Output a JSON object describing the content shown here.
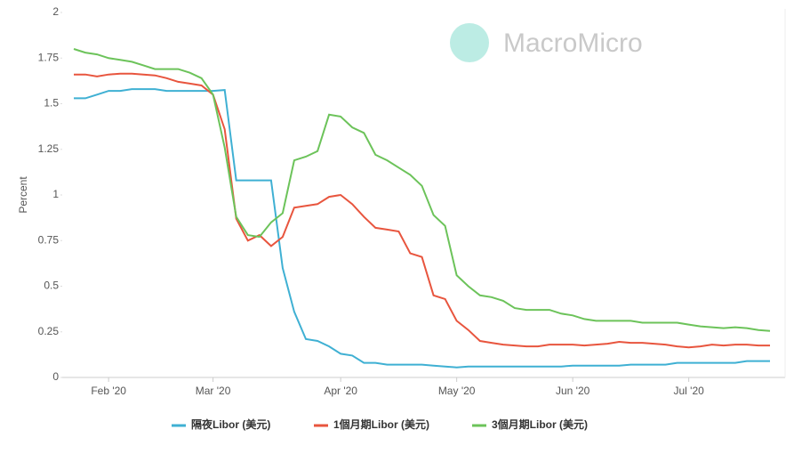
{
  "chart_data": {
    "type": "line",
    "watermark": "MacroMicro",
    "y_label": "Percent",
    "categories": [
      null,
      null,
      null,
      "Feb '20",
      null,
      null,
      null,
      null,
      null,
      null,
      null,
      null,
      "Mar '20",
      null,
      null,
      null,
      null,
      null,
      null,
      null,
      null,
      null,
      null,
      "Apr '20",
      null,
      null,
      null,
      null,
      null,
      null,
      null,
      null,
      null,
      "May '20",
      null,
      null,
      null,
      null,
      null,
      null,
      null,
      null,
      null,
      "Jun '20",
      null,
      null,
      null,
      null,
      null,
      null,
      null,
      null,
      null,
      "Jul '20",
      null,
      null,
      null,
      null,
      null,
      null,
      null
    ],
    "series": [
      {
        "name": "隔夜Libor (美元)",
        "color": "#3fb0d3",
        "values": [
          1.53,
          1.53,
          1.55,
          1.57,
          1.57,
          1.58,
          1.58,
          1.58,
          1.57,
          1.57,
          1.57,
          1.57,
          1.57,
          1.575,
          1.08,
          1.08,
          1.08,
          1.08,
          0.6,
          0.36,
          0.21,
          0.2,
          0.17,
          0.13,
          0.12,
          0.08,
          0.08,
          0.07,
          0.07,
          0.07,
          0.07,
          0.065,
          0.06,
          0.055,
          0.06,
          0.06,
          0.06,
          0.06,
          0.06,
          0.06,
          0.06,
          0.06,
          0.06,
          0.065,
          0.065,
          0.065,
          0.065,
          0.065,
          0.07,
          0.07,
          0.07,
          0.07,
          0.08,
          0.08,
          0.08,
          0.08,
          0.08,
          0.08,
          0.09,
          0.09,
          0.09
        ]
      },
      {
        "name": "1個月期Libor (美元)",
        "color": "#e8553e",
        "values": [
          1.66,
          1.66,
          1.65,
          1.66,
          1.665,
          1.665,
          1.66,
          1.655,
          1.64,
          1.62,
          1.61,
          1.6,
          1.55,
          1.36,
          0.87,
          0.75,
          0.78,
          0.72,
          0.77,
          0.93,
          0.94,
          0.95,
          0.99,
          1.0,
          0.95,
          0.88,
          0.82,
          0.81,
          0.8,
          0.68,
          0.66,
          0.45,
          0.43,
          0.31,
          0.26,
          0.2,
          0.19,
          0.18,
          0.175,
          0.17,
          0.17,
          0.18,
          0.18,
          0.18,
          0.175,
          0.18,
          0.185,
          0.195,
          0.19,
          0.19,
          0.185,
          0.18,
          0.17,
          0.165,
          0.17,
          0.18,
          0.175,
          0.18,
          0.18,
          0.175,
          0.175
        ]
      },
      {
        "name": "3個月期Libor (美元)",
        "color": "#6cc35a",
        "values": [
          1.8,
          1.78,
          1.77,
          1.75,
          1.74,
          1.73,
          1.71,
          1.69,
          1.69,
          1.69,
          1.67,
          1.64,
          1.55,
          1.26,
          0.88,
          0.78,
          0.77,
          0.85,
          0.9,
          1.19,
          1.21,
          1.24,
          1.44,
          1.43,
          1.37,
          1.34,
          1.22,
          1.19,
          1.15,
          1.11,
          1.05,
          0.89,
          0.83,
          0.56,
          0.5,
          0.45,
          0.44,
          0.42,
          0.38,
          0.37,
          0.37,
          0.37,
          0.35,
          0.34,
          0.32,
          0.31,
          0.31,
          0.31,
          0.31,
          0.3,
          0.3,
          0.3,
          0.3,
          0.29,
          0.28,
          0.275,
          0.27,
          0.275,
          0.27,
          0.26,
          0.255
        ]
      }
    ],
    "ylim": [
      0,
      2
    ],
    "yticks": [
      0,
      0.25,
      0.5,
      0.75,
      1,
      1.25,
      1.5,
      1.75,
      2
    ],
    "grid": false,
    "legend": "bottom"
  }
}
